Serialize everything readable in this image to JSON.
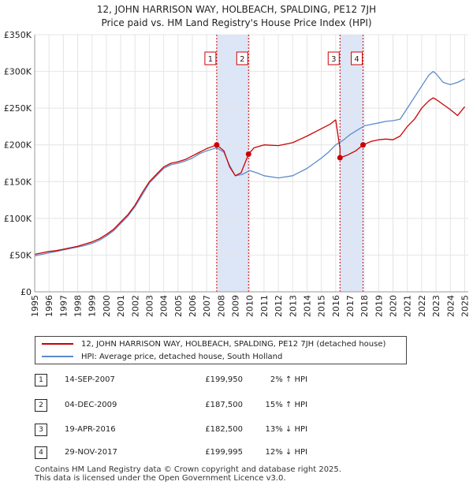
{
  "title_line1": "12, JOHN HARRISON WAY, HOLBEACH, SPALDING, PE12 7JH",
  "title_line2": "Price paid vs. HM Land Registry's House Price Index (HPI)",
  "legend": {
    "property": "12, JOHN HARRISON WAY, HOLBEACH, SPALDING, PE12 7JH (detached house)",
    "hpi": "HPI: Average price, detached house, South Holland"
  },
  "transactions": [
    {
      "num": "1",
      "date": "14-SEP-2007",
      "price": "£199,950",
      "hpi": "2% ↑ HPI"
    },
    {
      "num": "2",
      "date": "04-DEC-2009",
      "price": "£187,500",
      "hpi": "15% ↑ HPI"
    },
    {
      "num": "3",
      "date": "19-APR-2016",
      "price": "£182,500",
      "hpi": "13% ↓ HPI"
    },
    {
      "num": "4",
      "date": "29-NOV-2017",
      "price": "£199,995",
      "hpi": "12% ↓ HPI"
    }
  ],
  "footer_line1": "Contains HM Land Registry data © Crown copyright and database right 2025.",
  "footer_line2": "This data is licensed under the Open Government Licence v3.0.",
  "colors": {
    "property": "#cc0000",
    "hpi": "#5b8cc9",
    "band": "#dde6f7",
    "grid": "#e4e4e4"
  },
  "chart_data": {
    "type": "line",
    "title": "12, JOHN HARRISON WAY, HOLBEACH, SPALDING, PE12 7JH — Price paid vs. HM Land Registry's House Price Index (HPI)",
    "xlabel": "",
    "ylabel": "",
    "xlim": [
      1995,
      2025.25
    ],
    "ylim": [
      0,
      350000
    ],
    "x_ticks": [
      1995,
      1996,
      1997,
      1998,
      1999,
      2000,
      2001,
      2002,
      2003,
      2004,
      2005,
      2006,
      2007,
      2008,
      2009,
      2010,
      2011,
      2012,
      2013,
      2014,
      2015,
      2016,
      2017,
      2018,
      2019,
      2020,
      2021,
      2022,
      2023,
      2024,
      2025
    ],
    "y_ticks": [
      0,
      50000,
      100000,
      150000,
      200000,
      250000,
      300000,
      350000
    ],
    "y_tick_labels": [
      "£0",
      "£50K",
      "£100K",
      "£150K",
      "£200K",
      "£250K",
      "£300K",
      "£350K"
    ],
    "grid": true,
    "legend_position": "bottom",
    "series": [
      {
        "name": "12, JOHN HARRISON WAY, HOLBEACH, SPALDING, PE12 7JH (detached house)",
        "points": [
          [
            1995.0,
            51000
          ],
          [
            1995.5,
            53000
          ],
          [
            1996.0,
            55000
          ],
          [
            1996.5,
            56000
          ],
          [
            1997.0,
            58000
          ],
          [
            1997.5,
            60000
          ],
          [
            1998.0,
            62000
          ],
          [
            1998.5,
            65000
          ],
          [
            1999.0,
            68000
          ],
          [
            1999.5,
            72000
          ],
          [
            2000.0,
            78000
          ],
          [
            2000.5,
            85000
          ],
          [
            2001.0,
            95000
          ],
          [
            2001.5,
            105000
          ],
          [
            2002.0,
            118000
          ],
          [
            2002.5,
            135000
          ],
          [
            2003.0,
            150000
          ],
          [
            2003.5,
            160000
          ],
          [
            2004.0,
            170000
          ],
          [
            2004.5,
            175000
          ],
          [
            2005.0,
            177000
          ],
          [
            2005.5,
            180000
          ],
          [
            2006.0,
            185000
          ],
          [
            2006.5,
            190000
          ],
          [
            2007.0,
            195000
          ],
          [
            2007.7,
            199950
          ],
          [
            2008.2,
            192000
          ],
          [
            2008.6,
            170000
          ],
          [
            2009.0,
            158000
          ],
          [
            2009.4,
            162000
          ],
          [
            2009.92,
            187500
          ],
          [
            2010.3,
            196000
          ],
          [
            2011.0,
            200000
          ],
          [
            2012.0,
            199000
          ],
          [
            2013.0,
            203000
          ],
          [
            2014.0,
            212000
          ],
          [
            2015.0,
            222000
          ],
          [
            2015.6,
            228000
          ],
          [
            2016.0,
            234000
          ],
          [
            2016.3,
            195000
          ],
          [
            2016.3,
            182500
          ],
          [
            2016.8,
            186000
          ],
          [
            2017.4,
            192000
          ],
          [
            2017.91,
            199995
          ],
          [
            2018.5,
            205000
          ],
          [
            2019.0,
            207000
          ],
          [
            2019.5,
            208000
          ],
          [
            2020.0,
            207000
          ],
          [
            2020.5,
            212000
          ],
          [
            2021.0,
            225000
          ],
          [
            2021.5,
            235000
          ],
          [
            2022.0,
            250000
          ],
          [
            2022.5,
            260000
          ],
          [
            2022.8,
            264000
          ],
          [
            2023.0,
            262000
          ],
          [
            2023.5,
            255000
          ],
          [
            2024.0,
            248000
          ],
          [
            2024.5,
            240000
          ],
          [
            2025.0,
            252000
          ]
        ]
      },
      {
        "name": "HPI: Average price, detached house, South Holland",
        "points": [
          [
            1995.0,
            49000
          ],
          [
            1995.5,
            51000
          ],
          [
            1996.0,
            53000
          ],
          [
            1996.5,
            55000
          ],
          [
            1997.0,
            57000
          ],
          [
            1997.5,
            59000
          ],
          [
            1998.0,
            61000
          ],
          [
            1998.5,
            63000
          ],
          [
            1999.0,
            66000
          ],
          [
            1999.5,
            70000
          ],
          [
            2000.0,
            76000
          ],
          [
            2000.5,
            83000
          ],
          [
            2001.0,
            93000
          ],
          [
            2001.5,
            103000
          ],
          [
            2002.0,
            116000
          ],
          [
            2002.5,
            132000
          ],
          [
            2003.0,
            148000
          ],
          [
            2003.5,
            158000
          ],
          [
            2004.0,
            168000
          ],
          [
            2004.5,
            173000
          ],
          [
            2005.0,
            175000
          ],
          [
            2005.5,
            178000
          ],
          [
            2006.0,
            182000
          ],
          [
            2006.5,
            188000
          ],
          [
            2007.0,
            192000
          ],
          [
            2007.7,
            196000
          ],
          [
            2008.2,
            190000
          ],
          [
            2008.6,
            172000
          ],
          [
            2009.0,
            158000
          ],
          [
            2009.5,
            160000
          ],
          [
            2010.0,
            165000
          ],
          [
            2010.5,
            162000
          ],
          [
            2011.0,
            158000
          ],
          [
            2012.0,
            155000
          ],
          [
            2013.0,
            158000
          ],
          [
            2014.0,
            168000
          ],
          [
            2015.0,
            182000
          ],
          [
            2015.5,
            190000
          ],
          [
            2016.0,
            200000
          ],
          [
            2016.5,
            206000
          ],
          [
            2017.0,
            214000
          ],
          [
            2017.5,
            220000
          ],
          [
            2018.0,
            226000
          ],
          [
            2018.5,
            228000
          ],
          [
            2019.0,
            230000
          ],
          [
            2019.5,
            232000
          ],
          [
            2020.0,
            233000
          ],
          [
            2020.5,
            235000
          ],
          [
            2021.0,
            250000
          ],
          [
            2021.5,
            265000
          ],
          [
            2022.0,
            280000
          ],
          [
            2022.5,
            295000
          ],
          [
            2022.8,
            300000
          ],
          [
            2023.0,
            297000
          ],
          [
            2023.5,
            285000
          ],
          [
            2024.0,
            282000
          ],
          [
            2024.5,
            285000
          ],
          [
            2025.0,
            290000
          ]
        ]
      }
    ],
    "sales": [
      {
        "num": "1",
        "x": 2007.7,
        "y": 199950
      },
      {
        "num": "2",
        "x": 2009.92,
        "y": 187500
      },
      {
        "num": "3",
        "x": 2016.3,
        "y": 182500
      },
      {
        "num": "4",
        "x": 2017.91,
        "y": 199995
      }
    ],
    "shaded_bands": [
      [
        2007.7,
        2009.92
      ],
      [
        2016.3,
        2017.91
      ]
    ]
  }
}
